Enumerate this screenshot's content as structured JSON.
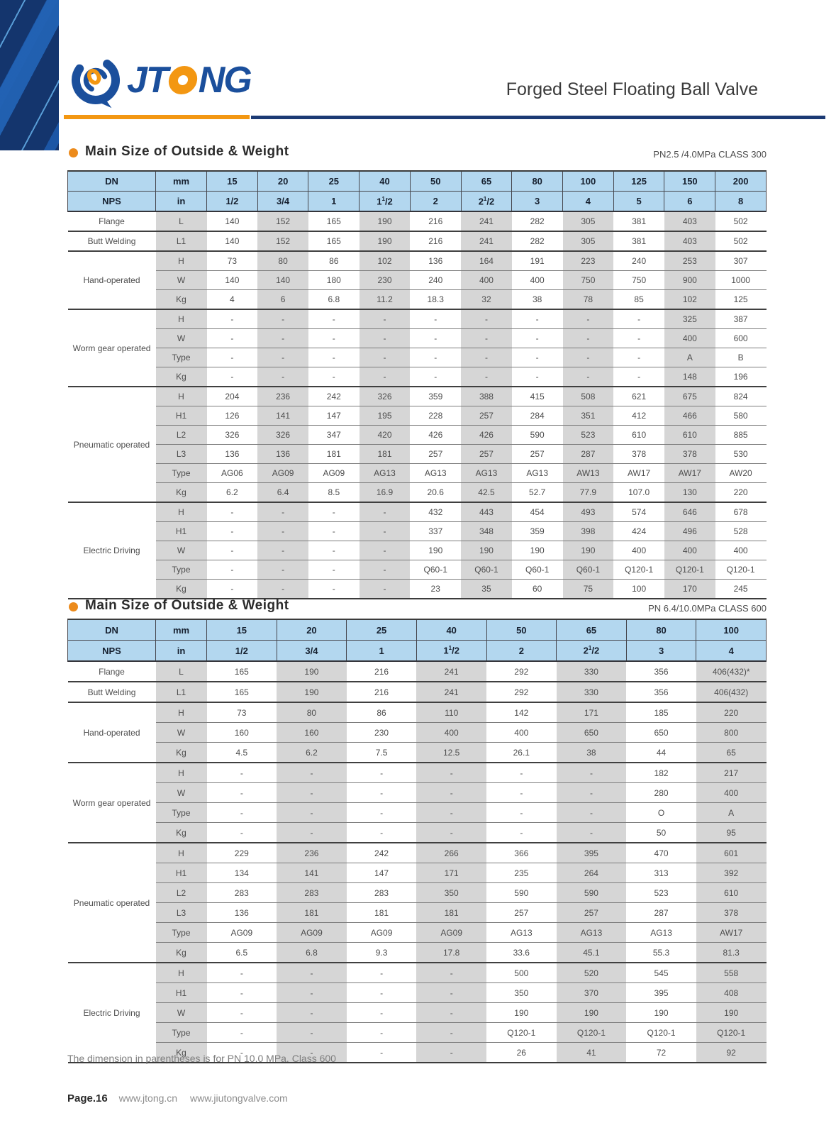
{
  "page": {
    "logo_pre": "JT",
    "logo_post": "NG",
    "doc_title": "Forged Steel Floating Ball Valve",
    "footnote": "The dimension in parentheses is for PN 10.0 MPa. Class 600",
    "footer": {
      "page_label": "Page.16",
      "site1": "www.jtong.cn",
      "site2": "www.jiutongvalve.com"
    }
  },
  "colors": {
    "brand_blue": "#1b4f9c",
    "brand_orange": "#f39712",
    "navy_rule": "#1b3a74",
    "header_cell_blue": "#b3d7ef",
    "shaded_column_gray": "#d6d6d6"
  },
  "tables": [
    {
      "section_title": "Main Size of Outside & Weight",
      "class_label": "PN2.5 /4.0MPa CLASS 300",
      "dn_row": [
        "DN",
        "mm",
        "15",
        "20",
        "25",
        "40",
        "50",
        "65",
        "80",
        "100",
        "125",
        "150",
        "200"
      ],
      "nps_row": [
        "NPS",
        "in",
        "1/2",
        "3/4",
        "1",
        "1½",
        "2",
        "2½",
        "3",
        "4",
        "5",
        "6",
        "8"
      ],
      "groups": [
        {
          "label": "Flange",
          "rows": [
            {
              "sub": "L",
              "values": [
                "140",
                "152",
                "165",
                "190",
                "216",
                "241",
                "282",
                "305",
                "381",
                "403",
                "502"
              ]
            }
          ]
        },
        {
          "label": "Butt Welding",
          "rows": [
            {
              "sub": "L1",
              "values": [
                "140",
                "152",
                "165",
                "190",
                "216",
                "241",
                "282",
                "305",
                "381",
                "403",
                "502"
              ]
            }
          ]
        },
        {
          "label": "Hand-operated",
          "rows": [
            {
              "sub": "H",
              "values": [
                "73",
                "80",
                "86",
                "102",
                "136",
                "164",
                "191",
                "223",
                "240",
                "253",
                "307"
              ]
            },
            {
              "sub": "W",
              "values": [
                "140",
                "140",
                "180",
                "230",
                "240",
                "400",
                "400",
                "750",
                "750",
                "900",
                "1000"
              ]
            },
            {
              "sub": "Kg",
              "values": [
                "4",
                "6",
                "6.8",
                "11.2",
                "18.3",
                "32",
                "38",
                "78",
                "85",
                "102",
                "125"
              ]
            }
          ]
        },
        {
          "label": "Worm gear operated",
          "rows": [
            {
              "sub": "H",
              "values": [
                "-",
                "-",
                "-",
                "-",
                "-",
                "-",
                "-",
                "-",
                "-",
                "325",
                "387"
              ]
            },
            {
              "sub": "W",
              "values": [
                "-",
                "-",
                "-",
                "-",
                "-",
                "-",
                "-",
                "-",
                "-",
                "400",
                "600"
              ]
            },
            {
              "sub": "Type",
              "values": [
                "-",
                "-",
                "-",
                "-",
                "-",
                "-",
                "-",
                "-",
                "-",
                "A",
                "B"
              ]
            },
            {
              "sub": "Kg",
              "values": [
                "-",
                "-",
                "-",
                "-",
                "-",
                "-",
                "-",
                "-",
                "-",
                "148",
                "196"
              ]
            }
          ]
        },
        {
          "label": "Pneumatic operated",
          "rows": [
            {
              "sub": "H",
              "values": [
                "204",
                "236",
                "242",
                "326",
                "359",
                "388",
                "415",
                "508",
                "621",
                "675",
                "824"
              ]
            },
            {
              "sub": "H1",
              "values": [
                "126",
                "141",
                "147",
                "195",
                "228",
                "257",
                "284",
                "351",
                "412",
                "466",
                "580"
              ]
            },
            {
              "sub": "L2",
              "values": [
                "326",
                "326",
                "347",
                "420",
                "426",
                "426",
                "590",
                "523",
                "610",
                "610",
                "885"
              ]
            },
            {
              "sub": "L3",
              "values": [
                "136",
                "136",
                "181",
                "181",
                "257",
                "257",
                "257",
                "287",
                "378",
                "378",
                "530"
              ]
            },
            {
              "sub": "Type",
              "values": [
                "AG06",
                "AG09",
                "AG09",
                "AG13",
                "AG13",
                "AG13",
                "AG13",
                "AW13",
                "AW17",
                "AW17",
                "AW20"
              ]
            },
            {
              "sub": "Kg",
              "values": [
                "6.2",
                "6.4",
                "8.5",
                "16.9",
                "20.6",
                "42.5",
                "52.7",
                "77.9",
                "107.0",
                "130",
                "220"
              ]
            }
          ]
        },
        {
          "label": "Electric Driving",
          "rows": [
            {
              "sub": "H",
              "values": [
                "-",
                "-",
                "-",
                "-",
                "432",
                "443",
                "454",
                "493",
                "574",
                "646",
                "678"
              ]
            },
            {
              "sub": "H1",
              "values": [
                "-",
                "-",
                "-",
                "-",
                "337",
                "348",
                "359",
                "398",
                "424",
                "496",
                "528"
              ]
            },
            {
              "sub": "W",
              "values": [
                "-",
                "-",
                "-",
                "-",
                "190",
                "190",
                "190",
                "190",
                "400",
                "400",
                "400"
              ]
            },
            {
              "sub": "Type",
              "values": [
                "-",
                "-",
                "-",
                "-",
                "Q60-1",
                "Q60-1",
                "Q60-1",
                "Q60-1",
                "Q120-1",
                "Q120-1",
                "Q120-1"
              ]
            },
            {
              "sub": "Kg",
              "values": [
                "-",
                "-",
                "-",
                "-",
                "23",
                "35",
                "60",
                "75",
                "100",
                "170",
                "245"
              ]
            }
          ]
        }
      ]
    },
    {
      "section_title": "Main Size of Outside & Weight",
      "class_label": "PN 6.4/10.0MPa CLASS 600",
      "dn_row": [
        "DN",
        "mm",
        "15",
        "20",
        "25",
        "40",
        "50",
        "65",
        "80",
        "100"
      ],
      "nps_row": [
        "NPS",
        "in",
        "1/2",
        "3/4",
        "1",
        "1½",
        "2",
        "2½",
        "3",
        "4"
      ],
      "groups": [
        {
          "label": "Flange",
          "rows": [
            {
              "sub": "L",
              "values": [
                "165",
                "190",
                "216",
                "241",
                "292",
                "330",
                "356",
                "406(432)*"
              ]
            }
          ]
        },
        {
          "label": "Butt Welding",
          "rows": [
            {
              "sub": "L1",
              "values": [
                "165",
                "190",
                "216",
                "241",
                "292",
                "330",
                "356",
                "406(432)"
              ]
            }
          ]
        },
        {
          "label": "Hand-operated",
          "rows": [
            {
              "sub": "H",
              "values": [
                "73",
                "80",
                "86",
                "110",
                "142",
                "171",
                "185",
                "220"
              ]
            },
            {
              "sub": "W",
              "values": [
                "160",
                "160",
                "230",
                "400",
                "400",
                "650",
                "650",
                "800"
              ]
            },
            {
              "sub": "Kg",
              "values": [
                "4.5",
                "6.2",
                "7.5",
                "12.5",
                "26.1",
                "38",
                "44",
                "65"
              ]
            }
          ]
        },
        {
          "label": "Worm gear operated",
          "rows": [
            {
              "sub": "H",
              "values": [
                "-",
                "-",
                "-",
                "-",
                "-",
                "-",
                "182",
                "217"
              ]
            },
            {
              "sub": "W",
              "values": [
                "-",
                "-",
                "-",
                "-",
                "-",
                "-",
                "280",
                "400"
              ]
            },
            {
              "sub": "Type",
              "values": [
                "-",
                "-",
                "-",
                "-",
                "-",
                "-",
                "O",
                "A"
              ]
            },
            {
              "sub": "Kg",
              "values": [
                "-",
                "-",
                "-",
                "-",
                "-",
                "-",
                "50",
                "95"
              ]
            }
          ]
        },
        {
          "label": "Pneumatic operated",
          "rows": [
            {
              "sub": "H",
              "values": [
                "229",
                "236",
                "242",
                "266",
                "366",
                "395",
                "470",
                "601"
              ]
            },
            {
              "sub": "H1",
              "values": [
                "134",
                "141",
                "147",
                "171",
                "235",
                "264",
                "313",
                "392"
              ]
            },
            {
              "sub": "L2",
              "values": [
                "283",
                "283",
                "283",
                "350",
                "590",
                "590",
                "523",
                "610"
              ]
            },
            {
              "sub": "L3",
              "values": [
                "136",
                "181",
                "181",
                "181",
                "257",
                "257",
                "287",
                "378"
              ]
            },
            {
              "sub": "Type",
              "values": [
                "AG09",
                "AG09",
                "AG09",
                "AG09",
                "AG13",
                "AG13",
                "AG13",
                "AW17"
              ]
            },
            {
              "sub": "Kg",
              "values": [
                "6.5",
                "6.8",
                "9.3",
                "17.8",
                "33.6",
                "45.1",
                "55.3",
                "81.3"
              ]
            }
          ]
        },
        {
          "label": "Electric Driving",
          "rows": [
            {
              "sub": "H",
              "values": [
                "-",
                "-",
                "-",
                "-",
                "500",
                "520",
                "545",
                "558"
              ]
            },
            {
              "sub": "H1",
              "values": [
                "-",
                "-",
                "-",
                "-",
                "350",
                "370",
                "395",
                "408"
              ]
            },
            {
              "sub": "W",
              "values": [
                "-",
                "-",
                "-",
                "-",
                "190",
                "190",
                "190",
                "190"
              ]
            },
            {
              "sub": "Type",
              "values": [
                "-",
                "-",
                "-",
                "-",
                "Q120-1",
                "Q120-1",
                "Q120-1",
                "Q120-1"
              ]
            },
            {
              "sub": "Kg",
              "values": [
                "-",
                "-",
                "-",
                "-",
                "26",
                "41",
                "72",
                "92"
              ]
            }
          ]
        }
      ]
    }
  ]
}
